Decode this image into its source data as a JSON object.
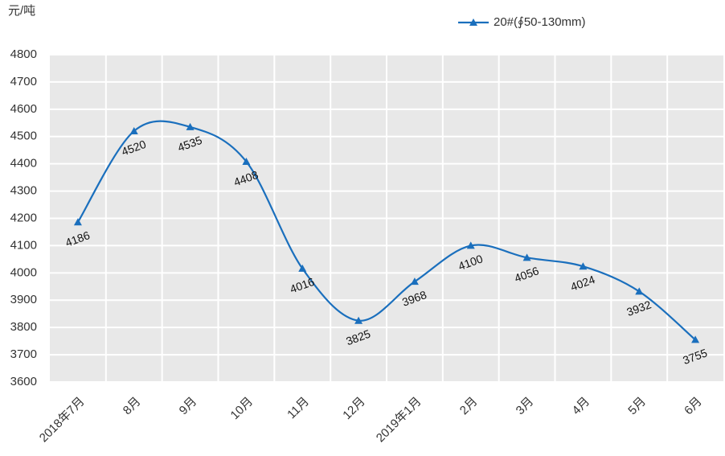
{
  "chart_data": {
    "type": "line",
    "y_label": "元/吨",
    "categories": [
      "2018年7月",
      "8月",
      "9月",
      "10月",
      "11月",
      "12月",
      "2019年1月",
      "2月",
      "3月",
      "4月",
      "5月",
      "6月"
    ],
    "series": [
      {
        "name": "20#(∮50-130mm)",
        "color": "#1a6fbd",
        "values": [
          4186,
          4520,
          4535,
          4408,
          4016,
          3825,
          3968,
          4100,
          4056,
          4024,
          3932,
          3755
        ]
      }
    ],
    "ylim": [
      3600,
      4800
    ],
    "yticks": [
      3600,
      3700,
      3800,
      3900,
      4000,
      4100,
      4200,
      4300,
      4400,
      4500,
      4600,
      4700,
      4800
    ],
    "grid": true,
    "smooth": true,
    "legend": "top"
  }
}
